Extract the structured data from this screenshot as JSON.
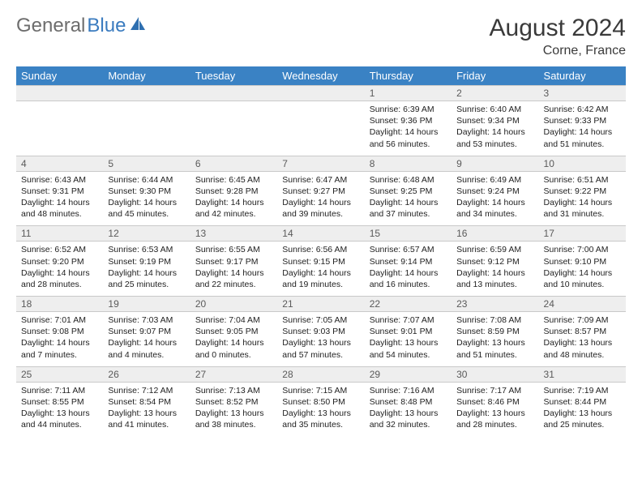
{
  "brand": {
    "part1": "General",
    "part2": "Blue"
  },
  "title": "August 2024",
  "location": "Corne, France",
  "colors": {
    "header_bg": "#3a82c4",
    "header_text": "#ffffff",
    "daynum_bg": "#eeeeee",
    "daynum_text": "#5a5a5a",
    "body_text": "#222222",
    "brand_gray": "#6d6d6d",
    "brand_blue": "#3a7bbf"
  },
  "dayNames": [
    "Sunday",
    "Monday",
    "Tuesday",
    "Wednesday",
    "Thursday",
    "Friday",
    "Saturday"
  ],
  "weeks": [
    [
      {
        "day": "",
        "sunrise": "",
        "sunset": "",
        "daylight": ""
      },
      {
        "day": "",
        "sunrise": "",
        "sunset": "",
        "daylight": ""
      },
      {
        "day": "",
        "sunrise": "",
        "sunset": "",
        "daylight": ""
      },
      {
        "day": "",
        "sunrise": "",
        "sunset": "",
        "daylight": ""
      },
      {
        "day": "1",
        "sunrise": "Sunrise: 6:39 AM",
        "sunset": "Sunset: 9:36 PM",
        "daylight": "Daylight: 14 hours and 56 minutes."
      },
      {
        "day": "2",
        "sunrise": "Sunrise: 6:40 AM",
        "sunset": "Sunset: 9:34 PM",
        "daylight": "Daylight: 14 hours and 53 minutes."
      },
      {
        "day": "3",
        "sunrise": "Sunrise: 6:42 AM",
        "sunset": "Sunset: 9:33 PM",
        "daylight": "Daylight: 14 hours and 51 minutes."
      }
    ],
    [
      {
        "day": "4",
        "sunrise": "Sunrise: 6:43 AM",
        "sunset": "Sunset: 9:31 PM",
        "daylight": "Daylight: 14 hours and 48 minutes."
      },
      {
        "day": "5",
        "sunrise": "Sunrise: 6:44 AM",
        "sunset": "Sunset: 9:30 PM",
        "daylight": "Daylight: 14 hours and 45 minutes."
      },
      {
        "day": "6",
        "sunrise": "Sunrise: 6:45 AM",
        "sunset": "Sunset: 9:28 PM",
        "daylight": "Daylight: 14 hours and 42 minutes."
      },
      {
        "day": "7",
        "sunrise": "Sunrise: 6:47 AM",
        "sunset": "Sunset: 9:27 PM",
        "daylight": "Daylight: 14 hours and 39 minutes."
      },
      {
        "day": "8",
        "sunrise": "Sunrise: 6:48 AM",
        "sunset": "Sunset: 9:25 PM",
        "daylight": "Daylight: 14 hours and 37 minutes."
      },
      {
        "day": "9",
        "sunrise": "Sunrise: 6:49 AM",
        "sunset": "Sunset: 9:24 PM",
        "daylight": "Daylight: 14 hours and 34 minutes."
      },
      {
        "day": "10",
        "sunrise": "Sunrise: 6:51 AM",
        "sunset": "Sunset: 9:22 PM",
        "daylight": "Daylight: 14 hours and 31 minutes."
      }
    ],
    [
      {
        "day": "11",
        "sunrise": "Sunrise: 6:52 AM",
        "sunset": "Sunset: 9:20 PM",
        "daylight": "Daylight: 14 hours and 28 minutes."
      },
      {
        "day": "12",
        "sunrise": "Sunrise: 6:53 AM",
        "sunset": "Sunset: 9:19 PM",
        "daylight": "Daylight: 14 hours and 25 minutes."
      },
      {
        "day": "13",
        "sunrise": "Sunrise: 6:55 AM",
        "sunset": "Sunset: 9:17 PM",
        "daylight": "Daylight: 14 hours and 22 minutes."
      },
      {
        "day": "14",
        "sunrise": "Sunrise: 6:56 AM",
        "sunset": "Sunset: 9:15 PM",
        "daylight": "Daylight: 14 hours and 19 minutes."
      },
      {
        "day": "15",
        "sunrise": "Sunrise: 6:57 AM",
        "sunset": "Sunset: 9:14 PM",
        "daylight": "Daylight: 14 hours and 16 minutes."
      },
      {
        "day": "16",
        "sunrise": "Sunrise: 6:59 AM",
        "sunset": "Sunset: 9:12 PM",
        "daylight": "Daylight: 14 hours and 13 minutes."
      },
      {
        "day": "17",
        "sunrise": "Sunrise: 7:00 AM",
        "sunset": "Sunset: 9:10 PM",
        "daylight": "Daylight: 14 hours and 10 minutes."
      }
    ],
    [
      {
        "day": "18",
        "sunrise": "Sunrise: 7:01 AM",
        "sunset": "Sunset: 9:08 PM",
        "daylight": "Daylight: 14 hours and 7 minutes."
      },
      {
        "day": "19",
        "sunrise": "Sunrise: 7:03 AM",
        "sunset": "Sunset: 9:07 PM",
        "daylight": "Daylight: 14 hours and 4 minutes."
      },
      {
        "day": "20",
        "sunrise": "Sunrise: 7:04 AM",
        "sunset": "Sunset: 9:05 PM",
        "daylight": "Daylight: 14 hours and 0 minutes."
      },
      {
        "day": "21",
        "sunrise": "Sunrise: 7:05 AM",
        "sunset": "Sunset: 9:03 PM",
        "daylight": "Daylight: 13 hours and 57 minutes."
      },
      {
        "day": "22",
        "sunrise": "Sunrise: 7:07 AM",
        "sunset": "Sunset: 9:01 PM",
        "daylight": "Daylight: 13 hours and 54 minutes."
      },
      {
        "day": "23",
        "sunrise": "Sunrise: 7:08 AM",
        "sunset": "Sunset: 8:59 PM",
        "daylight": "Daylight: 13 hours and 51 minutes."
      },
      {
        "day": "24",
        "sunrise": "Sunrise: 7:09 AM",
        "sunset": "Sunset: 8:57 PM",
        "daylight": "Daylight: 13 hours and 48 minutes."
      }
    ],
    [
      {
        "day": "25",
        "sunrise": "Sunrise: 7:11 AM",
        "sunset": "Sunset: 8:55 PM",
        "daylight": "Daylight: 13 hours and 44 minutes."
      },
      {
        "day": "26",
        "sunrise": "Sunrise: 7:12 AM",
        "sunset": "Sunset: 8:54 PM",
        "daylight": "Daylight: 13 hours and 41 minutes."
      },
      {
        "day": "27",
        "sunrise": "Sunrise: 7:13 AM",
        "sunset": "Sunset: 8:52 PM",
        "daylight": "Daylight: 13 hours and 38 minutes."
      },
      {
        "day": "28",
        "sunrise": "Sunrise: 7:15 AM",
        "sunset": "Sunset: 8:50 PM",
        "daylight": "Daylight: 13 hours and 35 minutes."
      },
      {
        "day": "29",
        "sunrise": "Sunrise: 7:16 AM",
        "sunset": "Sunset: 8:48 PM",
        "daylight": "Daylight: 13 hours and 32 minutes."
      },
      {
        "day": "30",
        "sunrise": "Sunrise: 7:17 AM",
        "sunset": "Sunset: 8:46 PM",
        "daylight": "Daylight: 13 hours and 28 minutes."
      },
      {
        "day": "31",
        "sunrise": "Sunrise: 7:19 AM",
        "sunset": "Sunset: 8:44 PM",
        "daylight": "Daylight: 13 hours and 25 minutes."
      }
    ]
  ]
}
